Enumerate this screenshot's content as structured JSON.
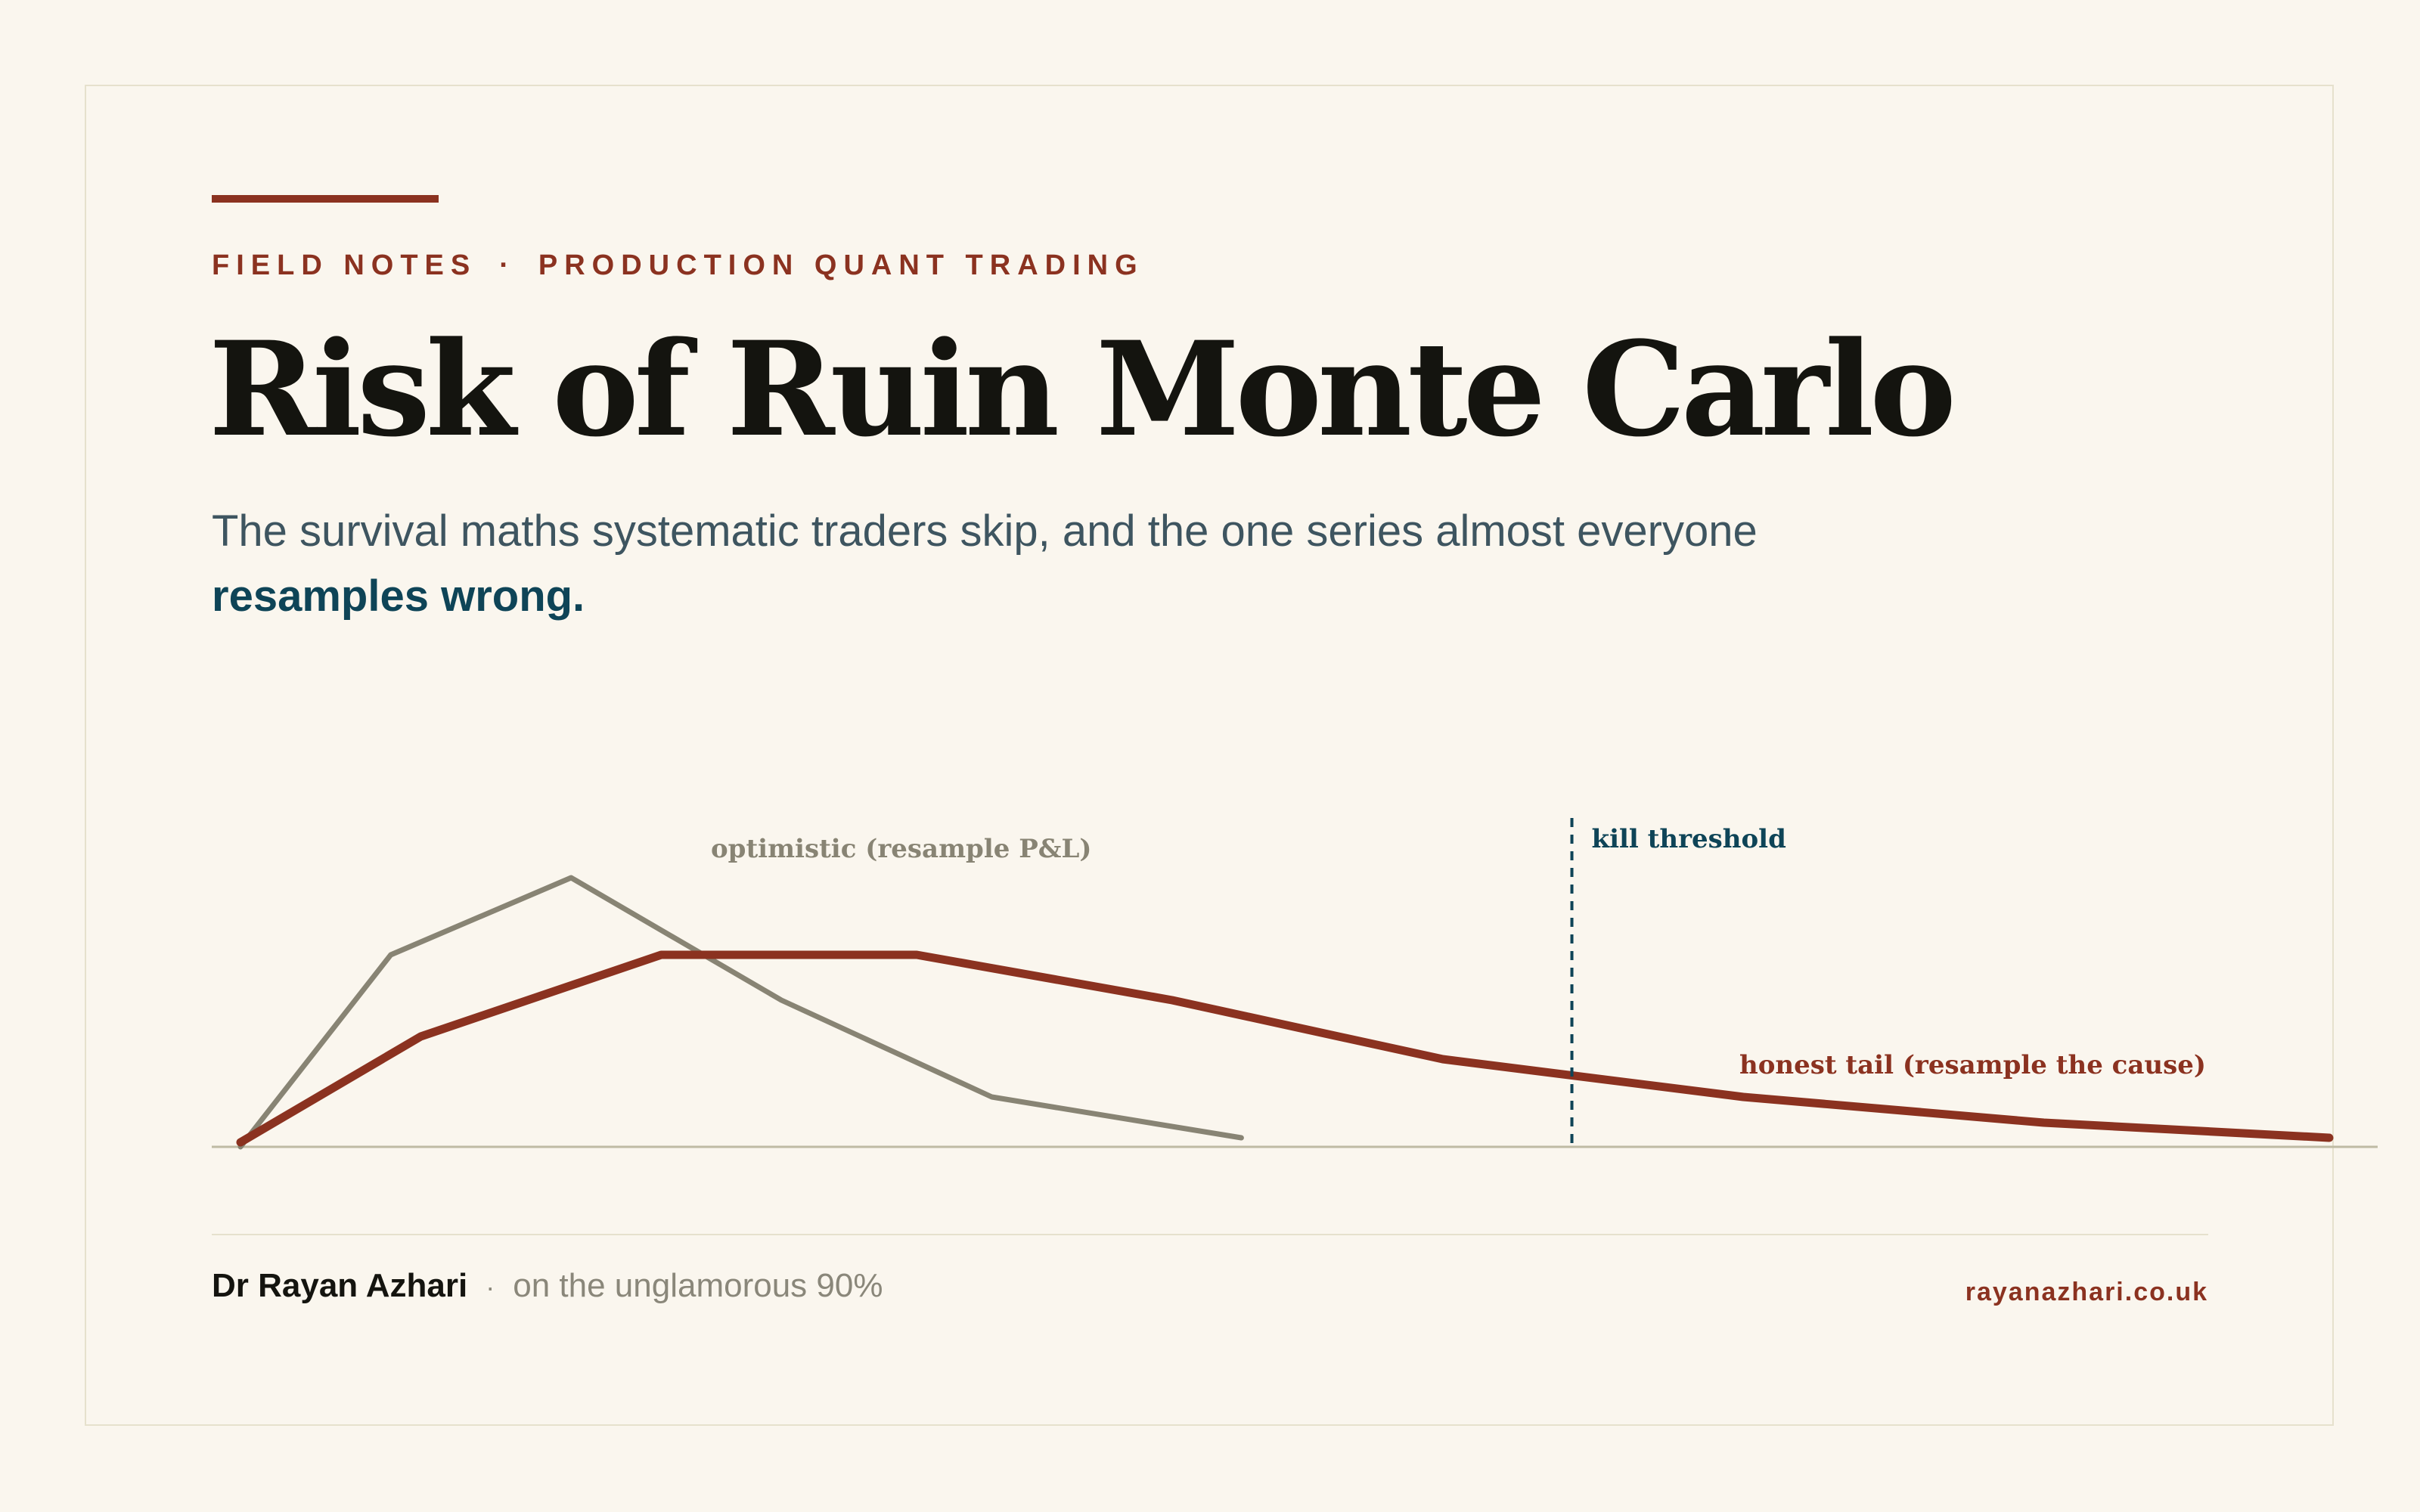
{
  "colors": {
    "background": "#faf6ee",
    "frame": "#e6e1cd",
    "accent": "#8b3220",
    "optimistic": "#888474",
    "threshold": "#0e4457",
    "title": "#14140f"
  },
  "header": {
    "kicker_left": "FIELD NOTES",
    "kicker_sep": "·",
    "kicker_right": "PRODUCTION QUANT TRADING",
    "title": "Risk of Ruin Monte Carlo",
    "subtitle_plain": "The survival maths systematic traders skip, and the one series almost everyone",
    "subtitle_strong": "resamples wrong."
  },
  "chart_data": {
    "type": "line",
    "series": [
      {
        "name": "optimistic (resample P&L)",
        "color": "#888474",
        "x": [
          0,
          100,
          220,
          360,
          500,
          666
        ],
        "y": [
          0,
          127,
          178,
          97,
          33,
          6
        ]
      },
      {
        "name": "honest tail (resample the cause)",
        "color": "#8b3220",
        "x": [
          0,
          120,
          280,
          450,
          620,
          800,
          1000,
          1200,
          1390
        ],
        "y": [
          3,
          73,
          127,
          127,
          97,
          58,
          33,
          16,
          6
        ]
      }
    ],
    "annotations": [
      {
        "text": "kill threshold",
        "x": 886
      }
    ],
    "xlim": [
      0,
      1390
    ],
    "ylim": [
      0,
      200
    ]
  },
  "footer": {
    "author": "Dr Rayan Azhari",
    "dot": "·",
    "tagline": "on the unglamorous 90%",
    "url": "rayanazhari.co.uk"
  }
}
